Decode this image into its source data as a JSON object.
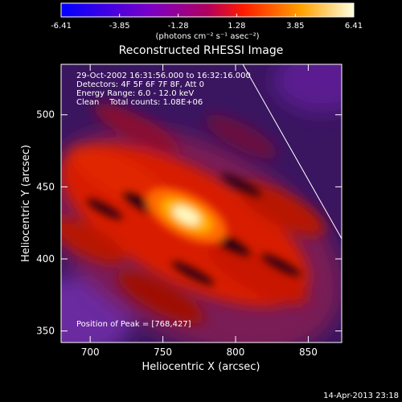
{
  "chart_data": {
    "type": "heatmap",
    "title": "Reconstructed RHESSI Image",
    "xlabel": "Heliocentric X (arcsec)",
    "ylabel": "Heliocentric Y (arcsec)",
    "xlim": [
      680,
      873
    ],
    "ylim": [
      342,
      535
    ],
    "x_ticks": [
      700,
      750,
      800,
      850
    ],
    "y_ticks": [
      350,
      400,
      450,
      500
    ],
    "colorbar": {
      "min": -6.41,
      "max": 6.41,
      "tick_values": [
        -6.41,
        -3.85,
        -1.28,
        1.28,
        3.85,
        6.41
      ],
      "tick_labels": [
        "-6.41",
        "-3.85",
        "-1.28",
        "1.28",
        "3.85",
        "6.41"
      ],
      "unit_label": "(photons cm⁻² s⁻¹ asec⁻²)"
    },
    "info_lines": [
      "29-Oct-2002 16:31:56.000 to 16:32:16.000",
      "Detectors: 4F 5F 6F 7F 8F, Att 0",
      "Energy Range: 6.0 - 12.0 keV",
      "Clean    Total counts: 1.08E+06"
    ],
    "peak": {
      "x": 768,
      "y": 427,
      "label": "Position of Peak = [768,427]"
    },
    "limb_line": [
      [
        805,
        535
      ],
      [
        873,
        414
      ]
    ],
    "timestamp": "14-Apr-2013 23:18"
  }
}
